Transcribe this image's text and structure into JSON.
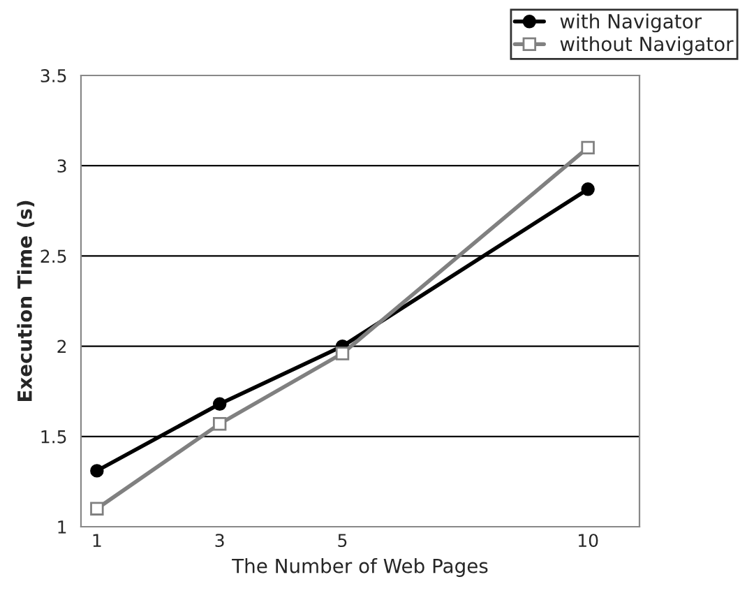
{
  "chart_data": {
    "type": "line",
    "xlabel": "The Number of Web Pages",
    "ylabel": "Execution Time (s)",
    "categories": [
      "1",
      "3",
      "5",
      null,
      "10"
    ],
    "series": [
      {
        "name": "with Navigator",
        "color": "#000000",
        "marker": "circle",
        "values": [
          1.31,
          1.68,
          2.0,
          null,
          2.87
        ]
      },
      {
        "name": "without Navigator",
        "color": "#808080",
        "marker": "square",
        "values": [
          1.1,
          1.57,
          1.96,
          null,
          3.1
        ]
      }
    ],
    "ylim": [
      1,
      3.5
    ],
    "yticks": [
      1,
      1.5,
      2,
      2.5,
      3,
      3.5
    ],
    "grid": "y",
    "legend": "top right"
  }
}
